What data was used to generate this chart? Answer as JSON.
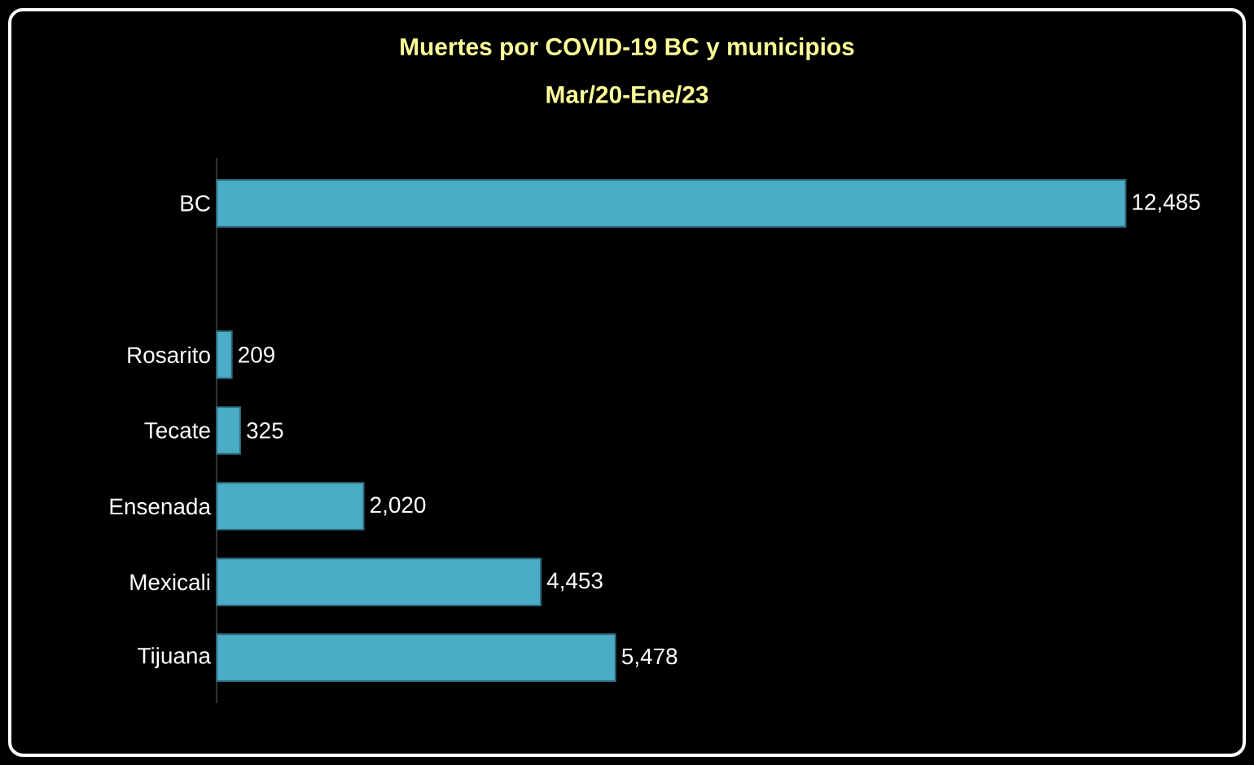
{
  "chart_data": {
    "type": "bar",
    "orientation": "horizontal",
    "title": "Muertes por COVID-19 BC y municipios",
    "subtitle": "Mar/20-Ene/23",
    "categories": [
      "BC",
      null,
      "Rosarito",
      "Tecate",
      "Ensenada",
      "Mexicali",
      "Tijuana"
    ],
    "values": [
      12485,
      null,
      209,
      325,
      2020,
      4453,
      5478
    ],
    "value_labels": [
      "12,485",
      null,
      "209",
      "325",
      "2,020",
      "4,453",
      "5,478"
    ],
    "color": "#4bacc6"
  }
}
